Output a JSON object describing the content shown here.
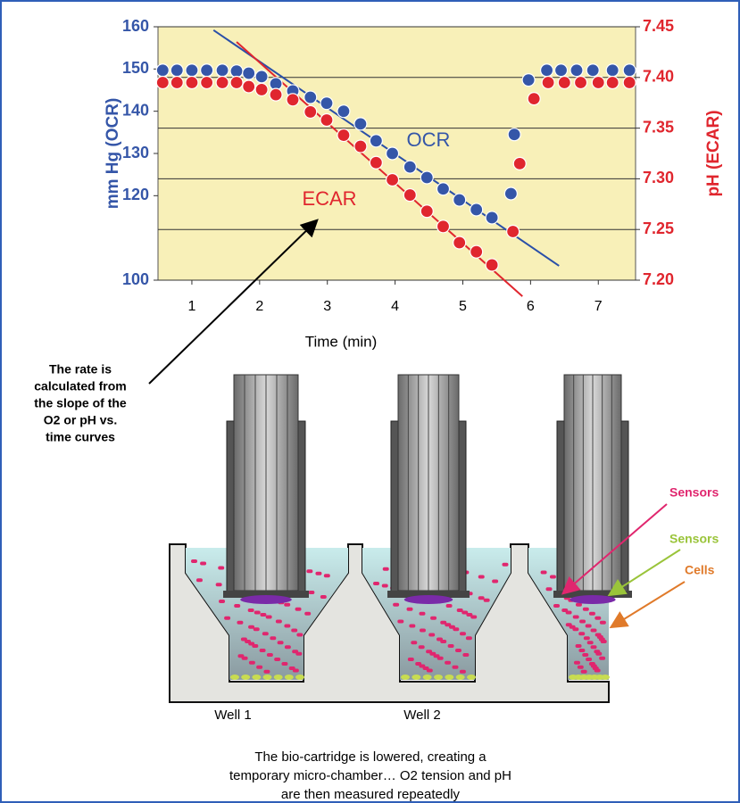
{
  "chart_data": {
    "type": "scatter",
    "xlabel": "Time (min)",
    "ylabel": "mm Hg (OCR)",
    "y2label": "pH (ECAR)",
    "xlim": [
      0.5,
      7.55
    ],
    "xticks": [
      1,
      2,
      3,
      4,
      5,
      6,
      7
    ],
    "ylim": [
      100,
      160
    ],
    "yticks": [
      100,
      120,
      130,
      140,
      150,
      160
    ],
    "y2lim": [
      7.2,
      7.45
    ],
    "y2ticks": [
      {
        "value": 7.2,
        "label": "7.20"
      },
      7.25,
      {
        "value": 7.3,
        "label": "7.30"
      },
      7.35,
      {
        "value": 7.4,
        "label": "7.40"
      },
      7.45
    ],
    "grid": true,
    "series": [
      {
        "name": "OCR",
        "color": "#3556a8",
        "x": [
          0.57,
          0.78,
          1.0,
          1.22,
          1.45,
          1.66,
          1.84,
          2.03,
          2.24,
          2.49,
          2.75,
          2.99,
          3.24,
          3.49,
          3.72,
          3.96,
          4.22,
          4.47,
          4.71,
          4.95,
          5.2,
          5.43,
          5.71,
          5.76,
          5.97,
          6.24,
          6.45,
          6.68,
          6.92,
          7.21,
          7.46
        ],
        "values": [
          149.7,
          149.7,
          149.7,
          149.7,
          149.7,
          149.5,
          149.0,
          148.2,
          146.5,
          144.8,
          143.3,
          141.9,
          140.0,
          137.0,
          133.0,
          130.0,
          126.8,
          124.3,
          121.6,
          119.0,
          116.7,
          114.8,
          120.5,
          134.5,
          147.4,
          149.7,
          149.7,
          149.7,
          149.7,
          149.7,
          149.7
        ]
      },
      {
        "name": "ECAR",
        "color": "#e0262e",
        "axis": "y2",
        "x": [
          0.57,
          0.78,
          1.0,
          1.22,
          1.45,
          1.66,
          1.84,
          2.03,
          2.24,
          2.49,
          2.75,
          2.99,
          3.24,
          3.49,
          3.72,
          3.96,
          4.22,
          4.47,
          4.71,
          4.95,
          5.2,
          5.43,
          5.74,
          5.84,
          6.05,
          6.26,
          6.5,
          6.74,
          7.0,
          7.21,
          7.46
        ],
        "values": [
          7.395,
          7.395,
          7.395,
          7.395,
          7.395,
          7.395,
          7.391,
          7.388,
          7.383,
          7.378,
          7.366,
          7.358,
          7.343,
          7.332,
          7.316,
          7.299,
          7.284,
          7.268,
          7.253,
          7.237,
          7.228,
          7.215,
          7.248,
          7.315,
          7.379,
          7.395,
          7.395,
          7.395,
          7.395,
          7.395,
          7.395
        ]
      }
    ],
    "trend_lines": [
      {
        "color": "#2a4fa8",
        "x": [
          1.32,
          6.42
        ],
        "values": [
          159.2,
          103.4
        ]
      },
      {
        "color": "#e0262e",
        "axis": "y2",
        "x": [
          1.66,
          5.88
        ],
        "values": [
          7.435,
          7.184
        ]
      }
    ]
  },
  "diagram": {
    "note_lines": [
      "The rate is",
      "calculated from",
      "the slope of the",
      "O2 or pH vs.",
      "time curves"
    ],
    "labels": [
      {
        "text": "Sensors",
        "color": "#e0266e"
      },
      {
        "text": "Sensors",
        "color": "#9ac43a"
      },
      {
        "text": "Cells",
        "color": "#e07a2a"
      }
    ],
    "wells": [
      "Well 1",
      "Well 2"
    ],
    "caption_lines": [
      "The bio-cartridge is lowered, creating a",
      "temporary micro-chamber… O2 tension and pH",
      "are then measured repeatedly"
    ]
  }
}
